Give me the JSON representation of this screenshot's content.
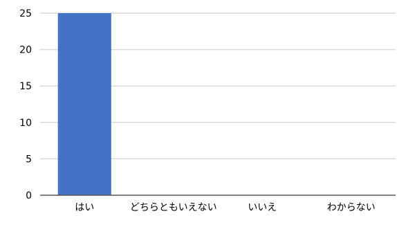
{
  "chart_data": {
    "type": "bar",
    "categories": [
      "はい",
      "どちらともいえない",
      "いいえ",
      "わからない"
    ],
    "values": [
      25,
      0,
      0,
      0
    ],
    "ylim": [
      0,
      25
    ],
    "yticks": [
      0,
      5,
      10,
      15,
      20,
      25
    ],
    "grid": true,
    "legend": "none",
    "bar_color": "#4472c4",
    "grid_color": "#d9d9d9",
    "axis_color": "#595959"
  }
}
